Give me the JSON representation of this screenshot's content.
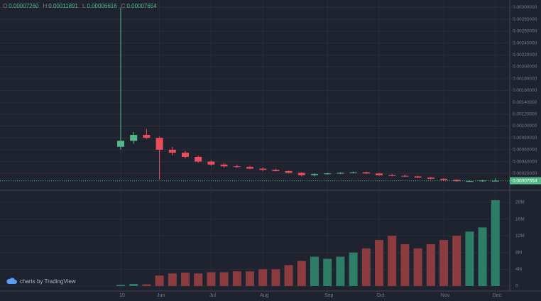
{
  "chart_data": {
    "type": "candlestick",
    "ohlc_legend": [
      "O",
      "0.00007260",
      "H",
      "0.00011891",
      "L",
      "0.00006616",
      "C",
      "0.00007654"
    ],
    "watermark": "charts by TradingView",
    "categories": [
      "10",
      null,
      null,
      "Jun",
      null,
      null,
      null,
      "Jul",
      null,
      null,
      null,
      "Aug",
      null,
      null,
      null,
      null,
      "Sep",
      null,
      null,
      null,
      "Oct",
      null,
      null,
      null,
      null,
      "Nov",
      null,
      null,
      null,
      "Dec"
    ],
    "open": [
      0.00065,
      0.00075,
      0.00085,
      0.0008,
      0.0006,
      0.00055,
      0.00048,
      0.0004,
      0.00035,
      0.00032,
      0.00031,
      0.00028,
      0.00026,
      0.00024,
      0.00021,
      0.00017,
      0.00019,
      0.0002,
      0.00021,
      0.00022,
      0.0002,
      0.00017,
      0.00016,
      0.00015,
      0.00013,
      0.00011,
      9e-05,
      7e-05,
      7e-05,
      7.26e-05
    ],
    "high": [
      0.003,
      0.0009,
      0.00095,
      0.00082,
      0.00065,
      0.00058,
      0.0005,
      0.00042,
      0.00038,
      0.00035,
      0.00033,
      0.0003,
      0.00028,
      0.00025,
      0.00022,
      0.0002,
      0.00021,
      0.00022,
      0.00023,
      0.00023,
      0.00021,
      0.00019,
      0.00018,
      0.00016,
      0.00014,
      0.00012,
      0.0001,
      8e-05,
      9e-05,
      0.00011891
    ],
    "low": [
      0.0006,
      0.0007,
      0.00078,
      0.0001,
      0.0005,
      0.00045,
      0.00038,
      0.00033,
      0.0003,
      0.00029,
      0.00027,
      0.00024,
      0.00023,
      0.0002,
      0.00015,
      0.00015,
      0.00018,
      0.00019,
      0.0002,
      0.00019,
      0.00016,
      0.00015,
      0.00014,
      0.00012,
      0.0001,
      8e-05,
      6e-05,
      6e-05,
      6e-05,
      6.616e-05
    ],
    "close": [
      0.00075,
      0.00085,
      0.0008,
      0.0006,
      0.00055,
      0.00048,
      0.0004,
      0.00035,
      0.00032,
      0.00031,
      0.00028,
      0.00026,
      0.00024,
      0.00021,
      0.00017,
      0.00019,
      0.0002,
      0.00021,
      0.00022,
      0.0002,
      0.00017,
      0.00016,
      0.00015,
      0.00013,
      0.00011,
      9e-05,
      7e-05,
      7e-05,
      8e-05,
      7.654e-05
    ],
    "volume": [
      300000,
      500000,
      400000,
      2500000,
      3000000,
      3200000,
      3000000,
      3300000,
      3300000,
      3500000,
      3500000,
      4000000,
      4000000,
      5000000,
      6000000,
      7000000,
      6500000,
      7000000,
      8000000,
      9000000,
      11000000,
      12000000,
      10000000,
      9000000,
      10000000,
      11000000,
      12000000,
      13000000,
      14000000,
      20500000
    ],
    "up_color": "#53b987",
    "down_color": "#eb4d5c",
    "volume_up_color": "#2e7d66",
    "volume_down_color": "#8c3b3f",
    "ylim": [
      0,
      0.003126
    ],
    "yticks": [
      {
        "value": 0.003,
        "label": "0.00300000"
      },
      {
        "value": 0.0028,
        "label": "0.00280000"
      },
      {
        "value": 0.0026,
        "label": "0.00260000"
      },
      {
        "value": 0.0024,
        "label": "0.00240000"
      },
      {
        "value": 0.0022,
        "label": "0.00220000"
      },
      {
        "value": 0.002,
        "label": "0.00200000"
      },
      {
        "value": 0.0018,
        "label": "0.00180000"
      },
      {
        "value": 0.0016,
        "label": "0.00160000"
      },
      {
        "value": 0.0014,
        "label": "0.00140000"
      },
      {
        "value": 0.0012,
        "label": "0.00120000"
      },
      {
        "value": 0.001,
        "label": "0.00100000"
      },
      {
        "value": 0.0008,
        "label": "0.00080000"
      },
      {
        "value": 0.0006,
        "label": "0.00060000"
      },
      {
        "value": 0.0004,
        "label": "0.00040000"
      },
      {
        "value": 0.0002,
        "label": "0.00020000"
      }
    ],
    "last_price": {
      "value": 7.654e-05,
      "label": "0.00007654"
    },
    "y2lim": [
      -1200000,
      22200000
    ],
    "y2ticks": [
      {
        "value": 20000000,
        "label": "20M"
      },
      {
        "value": 16000000,
        "label": "16M"
      },
      {
        "value": 12000000,
        "label": "12M"
      },
      {
        "value": 8000000,
        "label": "8M"
      },
      {
        "value": 4000000,
        "label": "4M"
      },
      0
    ],
    "grid": true
  }
}
